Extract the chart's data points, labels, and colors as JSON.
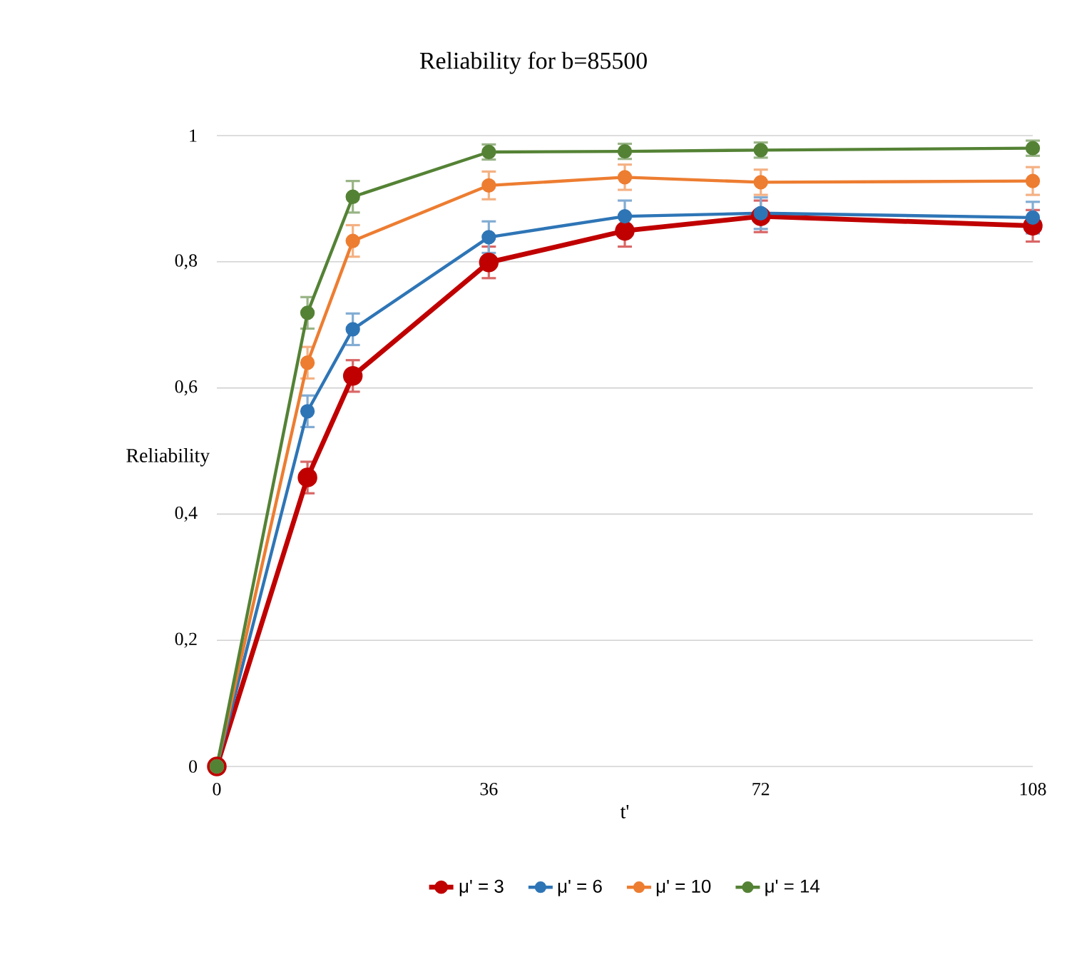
{
  "chart_data": {
    "type": "line",
    "title": "Reliability for b=85500",
    "xlabel": "t'",
    "ylabel": "Reliability",
    "x": [
      0,
      12,
      18,
      36,
      54,
      72,
      108
    ],
    "xlim": [
      0,
      108
    ],
    "xticks": [
      0,
      36,
      72,
      108
    ],
    "ylim": [
      0,
      1
    ],
    "yticks": [
      0,
      {
        "value": 0.2,
        "label": "0,2"
      },
      {
        "value": 0.4,
        "label": "0,4"
      },
      {
        "value": 0.6,
        "label": "0,6"
      },
      {
        "value": 0.8,
        "label": "0,8"
      },
      1
    ],
    "grid": "y",
    "legend": "bottom",
    "marker": "circle",
    "line_style": "solid",
    "series": [
      {
        "name": "μ' = 3",
        "color": "#c00000",
        "values": [
          0,
          0.458,
          0.619,
          0.799,
          0.849,
          0.872,
          0.857
        ],
        "errors": [
          null,
          0.025,
          0.025,
          0.025,
          0.025,
          0.025,
          0.025
        ]
      },
      {
        "name": "μ' = 6",
        "color": "#2e75b6",
        "values": [
          0,
          0.563,
          0.693,
          0.839,
          0.872,
          0.877,
          0.87
        ],
        "errors": [
          null,
          0.025,
          0.025,
          0.025,
          0.025,
          0.025,
          0.025
        ]
      },
      {
        "name": "μ' = 10",
        "color": "#ed7d31",
        "values": [
          0,
          0.64,
          0.833,
          0.921,
          0.934,
          0.926,
          0.928
        ],
        "errors": [
          null,
          0.025,
          0.025,
          0.022,
          0.02,
          0.02,
          0.022
        ]
      },
      {
        "name": "μ' = 14",
        "color": "#548235",
        "values": [
          0,
          0.719,
          0.903,
          0.974,
          0.975,
          0.977,
          0.98
        ],
        "errors": [
          null,
          0.025,
          0.025,
          0.012,
          0.012,
          0.012,
          0.012
        ]
      }
    ]
  }
}
